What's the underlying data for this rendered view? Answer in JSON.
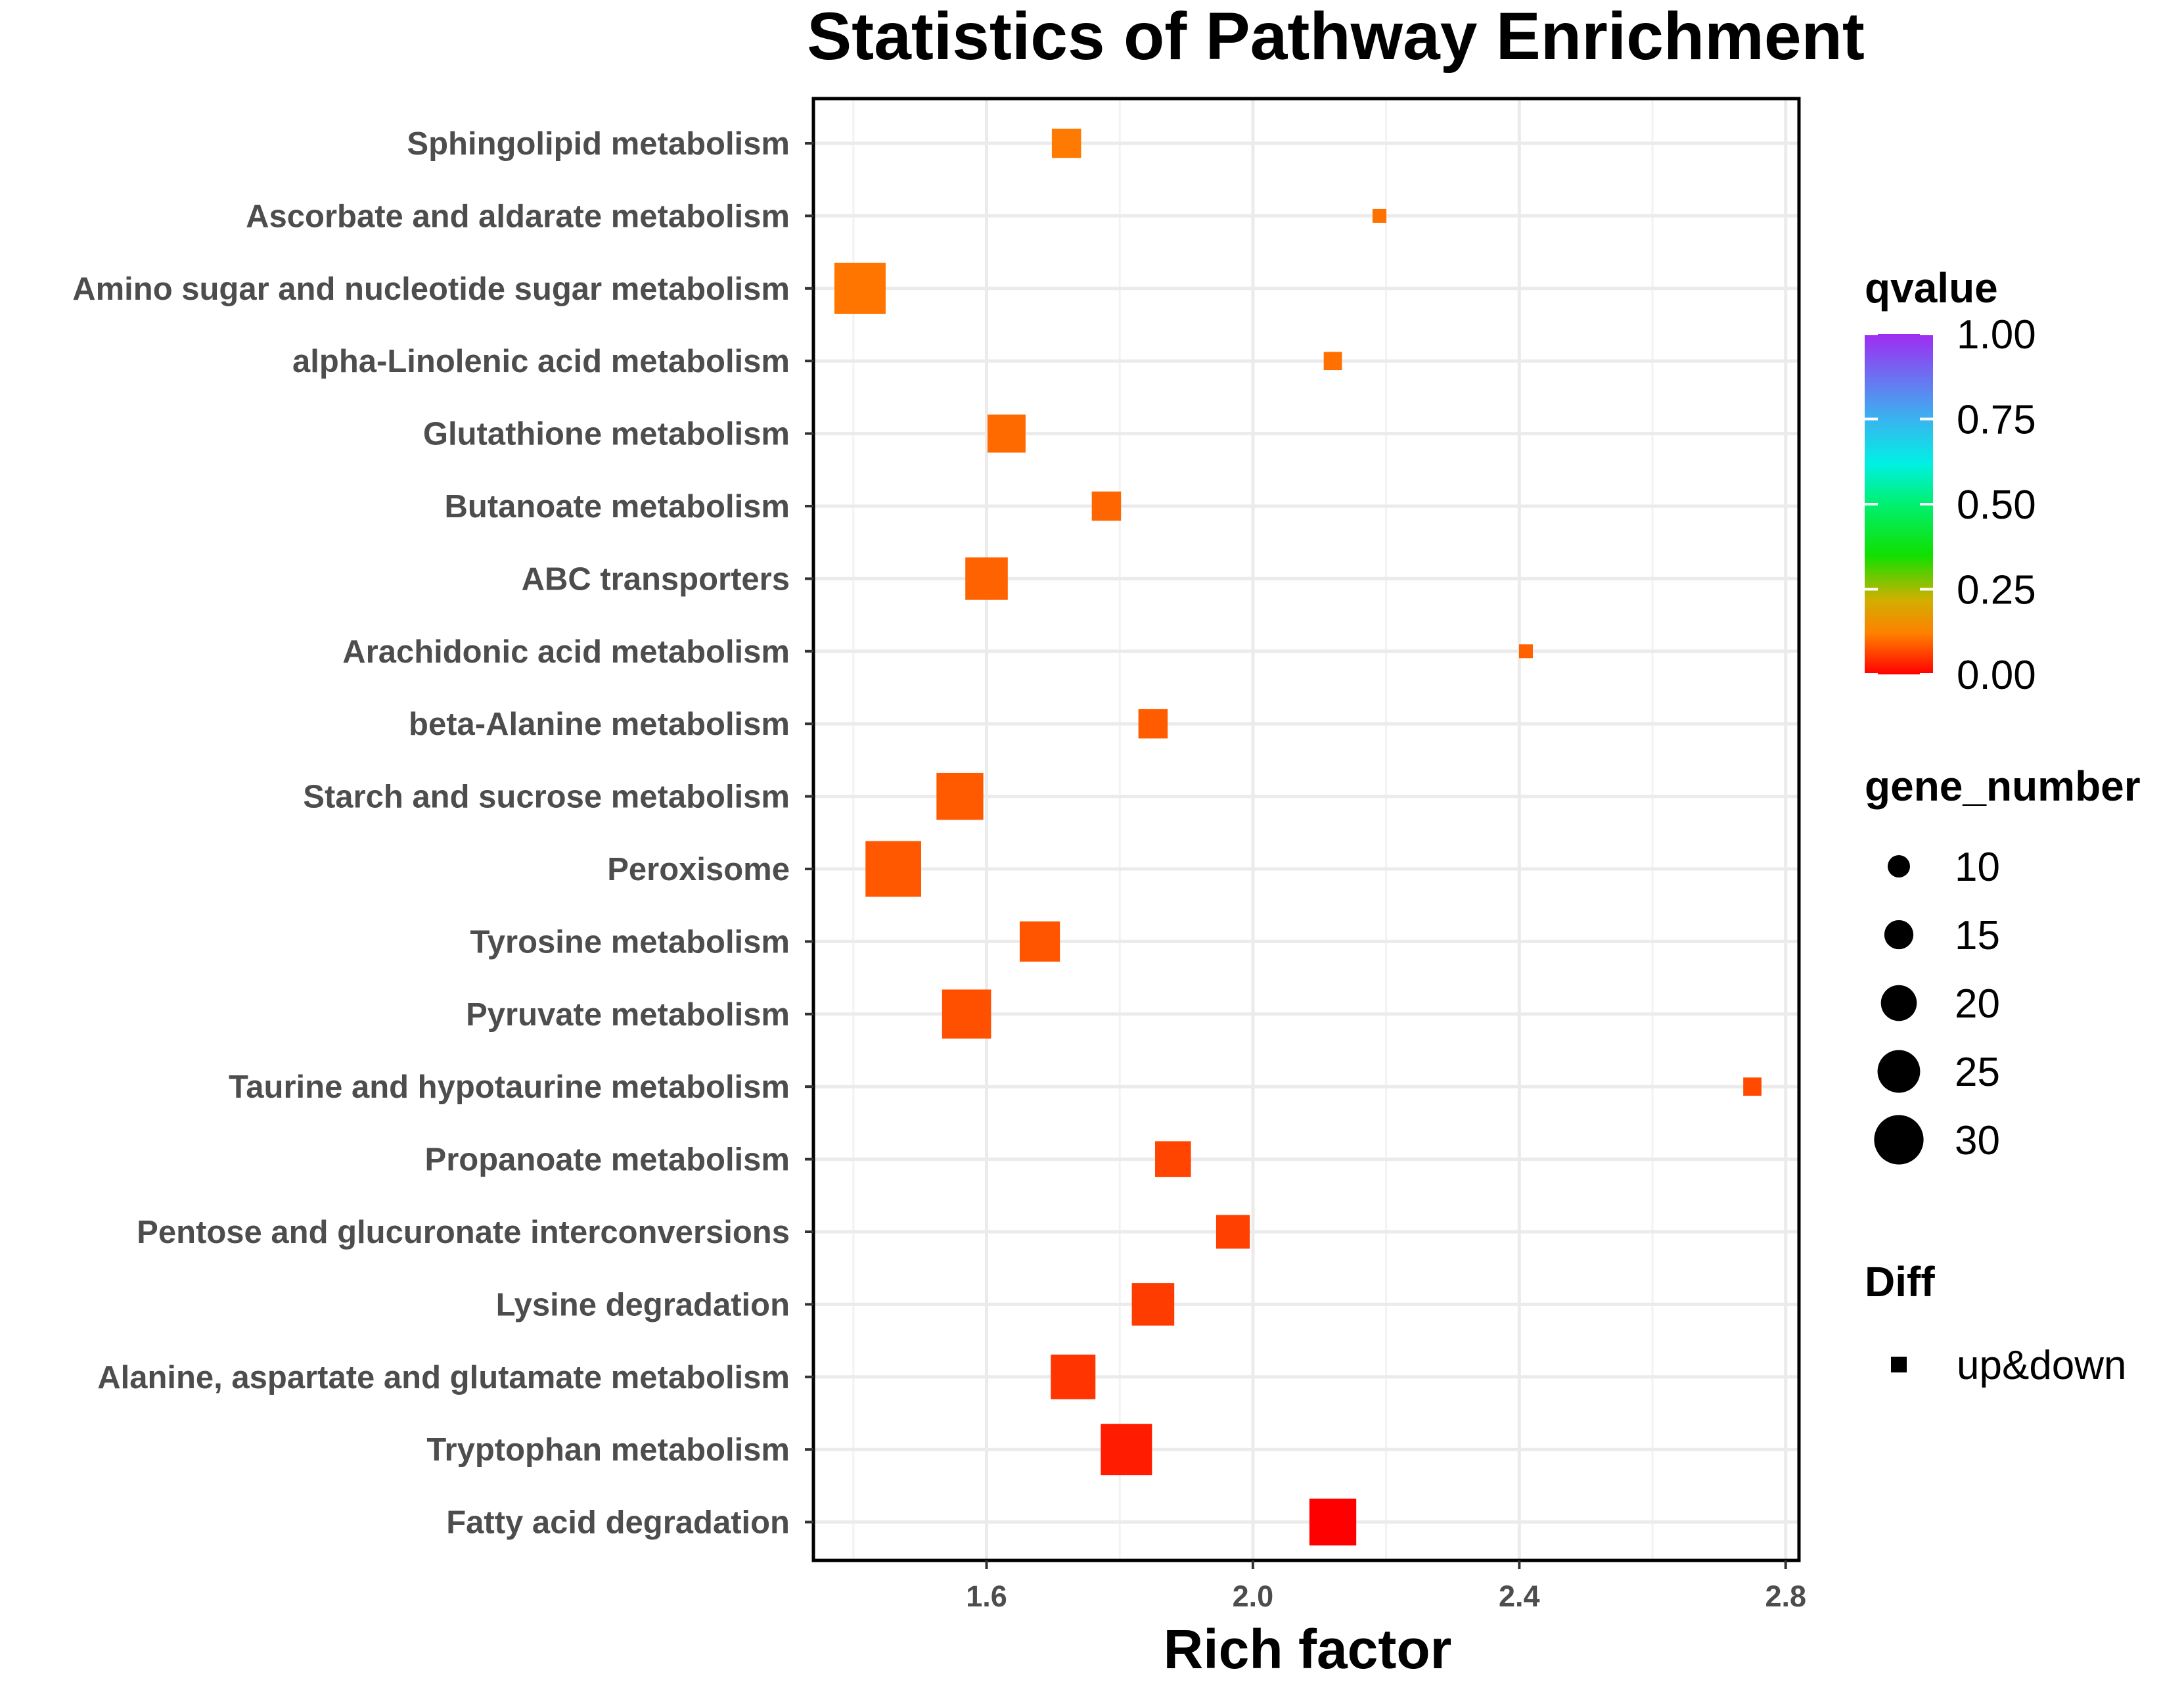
{
  "chart_data": {
    "type": "scatter",
    "title": "Statistics of Pathway Enrichment",
    "xlabel": "Rich factor",
    "ylabel": "",
    "xlim": [
      1.34,
      2.82
    ],
    "xticks": [
      {
        "value": 1.6,
        "label": "1.6"
      },
      {
        "value": 2.0,
        "label": "2.0"
      },
      {
        "value": 2.4,
        "label": "2.4"
      },
      {
        "value": 2.8,
        "label": "2.8"
      }
    ],
    "grid": true,
    "marker": "square",
    "points": [
      {
        "pathway": "Sphingolipid metabolism",
        "rich_factor": 1.72,
        "gene_number": 10,
        "qvalue": 0.14,
        "color": "#ff7a00"
      },
      {
        "pathway": "Ascorbate and aldarate metabolism",
        "rich_factor": 2.19,
        "gene_number": 3,
        "qvalue": 0.13,
        "color": "#ff7200"
      },
      {
        "pathway": "Amino sugar and nucleotide sugar metabolism",
        "rich_factor": 1.41,
        "gene_number": 20,
        "qvalue": 0.13,
        "color": "#ff7500"
      },
      {
        "pathway": "alpha-Linolenic acid metabolism",
        "rich_factor": 2.12,
        "gene_number": 5,
        "qvalue": 0.12,
        "color": "#ff7000"
      },
      {
        "pathway": "Glutathione metabolism",
        "rich_factor": 1.63,
        "gene_number": 14,
        "qvalue": 0.11,
        "color": "#ff6a00"
      },
      {
        "pathway": "Butanoate metabolism",
        "rich_factor": 1.78,
        "gene_number": 10,
        "qvalue": 0.1,
        "color": "#ff6500"
      },
      {
        "pathway": "ABC transporters",
        "rich_factor": 1.6,
        "gene_number": 16,
        "qvalue": 0.1,
        "color": "#ff6200"
      },
      {
        "pathway": "Arachidonic acid metabolism",
        "rich_factor": 2.41,
        "gene_number": 3,
        "qvalue": 0.1,
        "color": "#ff6000"
      },
      {
        "pathway": "beta-Alanine metabolism",
        "rich_factor": 1.85,
        "gene_number": 10,
        "qvalue": 0.09,
        "color": "#ff5c00"
      },
      {
        "pathway": "Starch and sucrose metabolism",
        "rich_factor": 1.56,
        "gene_number": 18,
        "qvalue": 0.09,
        "color": "#ff5a00"
      },
      {
        "pathway": "Peroxisome",
        "rich_factor": 1.46,
        "gene_number": 22,
        "qvalue": 0.08,
        "color": "#ff5800"
      },
      {
        "pathway": "Tyrosine metabolism",
        "rich_factor": 1.68,
        "gene_number": 15,
        "qvalue": 0.08,
        "color": "#ff5400"
      },
      {
        "pathway": "Pyruvate metabolism",
        "rich_factor": 1.57,
        "gene_number": 19,
        "qvalue": 0.07,
        "color": "#ff5000"
      },
      {
        "pathway": "Taurine and hypotaurine metabolism",
        "rich_factor": 2.75,
        "gene_number": 5,
        "qvalue": 0.06,
        "color": "#ff4a00"
      },
      {
        "pathway": "Propanoate metabolism",
        "rich_factor": 1.88,
        "gene_number": 13,
        "qvalue": 0.06,
        "color": "#ff4500"
      },
      {
        "pathway": "Pentose and glucuronate interconversions",
        "rich_factor": 1.97,
        "gene_number": 12,
        "qvalue": 0.05,
        "color": "#ff4000"
      },
      {
        "pathway": "Lysine degradation",
        "rich_factor": 1.85,
        "gene_number": 16,
        "qvalue": 0.05,
        "color": "#ff3c00"
      },
      {
        "pathway": "Alanine, aspartate and glutamate metabolism",
        "rich_factor": 1.73,
        "gene_number": 17,
        "qvalue": 0.04,
        "color": "#ff3400"
      },
      {
        "pathway": "Tryptophan metabolism",
        "rich_factor": 1.81,
        "gene_number": 20,
        "qvalue": 0.02,
        "color": "#ff1c00"
      },
      {
        "pathway": "Fatty acid degradation",
        "rich_factor": 2.12,
        "gene_number": 18,
        "qvalue": 0.0,
        "color": "#ff0000"
      }
    ],
    "legends": {
      "qvalue": {
        "title": "qvalue",
        "ticks": [
          {
            "value": 1.0,
            "label": "1.00"
          },
          {
            "value": 0.75,
            "label": "0.75"
          },
          {
            "value": 0.5,
            "label": "0.50"
          },
          {
            "value": 0.25,
            "label": "0.25"
          },
          {
            "value": 0.0,
            "label": "0.00"
          }
        ],
        "gradient_stops": [
          {
            "value": 1.0,
            "color": "#9f2cf2"
          },
          {
            "value": 0.75,
            "color": "#3ab3f0"
          },
          {
            "value": 0.62,
            "color": "#00f0e4"
          },
          {
            "value": 0.5,
            "color": "#00f070"
          },
          {
            "value": 0.35,
            "color": "#10e000"
          },
          {
            "value": 0.22,
            "color": "#d0b000"
          },
          {
            "value": 0.12,
            "color": "#ff8000"
          },
          {
            "value": 0.0,
            "color": "#ff0000"
          }
        ]
      },
      "gene_number": {
        "title": "gene_number",
        "entries": [
          {
            "value": 10,
            "label": "10"
          },
          {
            "value": 15,
            "label": "15"
          },
          {
            "value": 20,
            "label": "20"
          },
          {
            "value": 25,
            "label": "25"
          },
          {
            "value": 30,
            "label": "30"
          }
        ]
      },
      "diff": {
        "title": "Diff",
        "entries": [
          {
            "label": "up&down"
          }
        ]
      }
    }
  }
}
